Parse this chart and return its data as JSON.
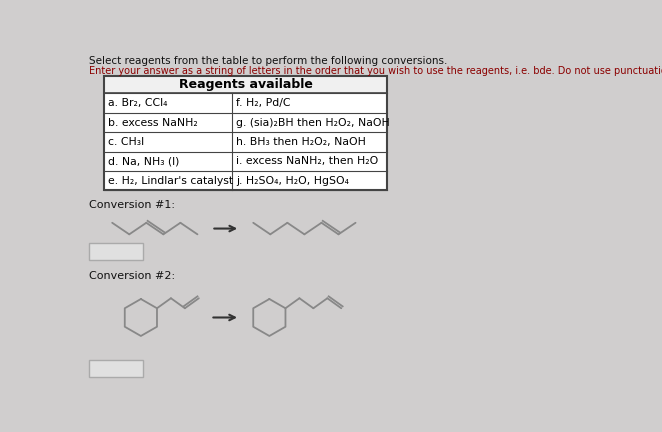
{
  "bg_color": "#d0cece",
  "title_line1": "reagents from the table to perform the following conversions.",
  "title_line1_prefix": "Select ",
  "title_line2": "Enter your answer as a string of letters in the order that you wish to use the reagents, i.e. bde. Do not use punctuation",
  "table_header": "Reagents available",
  "table_rows_left": [
    "a. Br₂, CCl₄",
    "b. excess NaNH₂",
    "c. CH₃I",
    "d. Na, NH₃ (l)",
    "e. H₂, Lindlar's catalyst"
  ],
  "table_rows_right": [
    "f. H₂, Pd/C",
    "g. (sia)₂BH then H₂O₂, NaOH",
    "h. BH₃ then H₂O₂, NaOH",
    "i. excess NaNH₂, then H₂O",
    "j. H₂SO₄, H₂O, HgSO₄"
  ],
  "conv1_label": "Conversion #1:",
  "conv2_label": "Conversion #2:",
  "line_color": "#888888",
  "table_line_color": "#444444",
  "text_dark": "#111111",
  "text_red": "#8b0000",
  "table_bg": "#ffffff",
  "answer_box_color": "#cccccc"
}
